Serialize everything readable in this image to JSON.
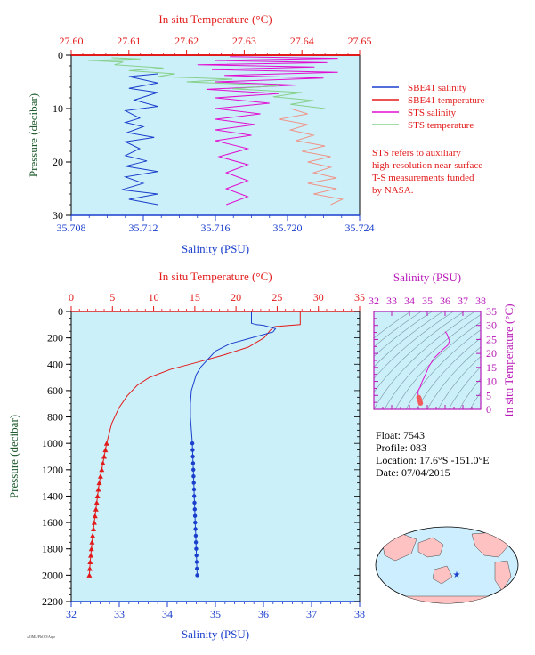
{
  "colors": {
    "background": "#ccf0fa",
    "blue": "#1a3fcc",
    "red": "#e21a1a",
    "magenta": "#e00fd0",
    "green": "#86d08a",
    "salmon": "#ef9488",
    "dark_green": "#1f5a2e",
    "purple": "#b818b8",
    "map_land": "#ffc2c2",
    "map_ocean": "#cceeff"
  },
  "footer_text": "AOML/PhOD/Argo",
  "chart_data": [
    {
      "type": "line",
      "id": "surface_profile",
      "top_axis_label": "In situ Temperature (°C)",
      "top_axis_ticks": [
        "27.60",
        "27.61",
        "27.62",
        "27.63",
        "27.64",
        "27.65"
      ],
      "top_axis_range": [
        27.6,
        27.65
      ],
      "bottom_axis_label": "Salinity (PSU)",
      "bottom_axis_ticks": [
        "35.708",
        "35.712",
        "35.716",
        "35.720",
        "35.724"
      ],
      "bottom_axis_range": [
        35.708,
        35.724
      ],
      "ylabel": "Pressure (decibar)",
      "y_ticks": [
        "0",
        "10",
        "20",
        "30"
      ],
      "y_range": [
        0,
        30
      ],
      "y_inverted": true,
      "legend": [
        {
          "name": "SBE41 salinity",
          "color": "#1a3fcc"
        },
        {
          "name": "SBE41 temperature",
          "color": "#e21a1a"
        },
        {
          "name": "STS salinity",
          "color": "#e00fd0"
        },
        {
          "name": "STS temperature",
          "color": "#86d08a"
        }
      ],
      "note": [
        "STS refers to auxiliary",
        "high-resolution near-surface",
        "T-S measurements funded",
        "by NASA."
      ],
      "series": [
        {
          "name": "SBE41 salinity",
          "axis": "bottom",
          "points": [
            [
              35.7128,
              3.5
            ],
            [
              35.7112,
              4.0
            ],
            [
              35.7128,
              5.2
            ],
            [
              35.7112,
              6.2
            ],
            [
              35.7128,
              7.0
            ],
            [
              35.7115,
              8.4
            ],
            [
              35.7128,
              9.6
            ],
            [
              35.711,
              10.4
            ],
            [
              35.7118,
              11.8
            ],
            [
              35.711,
              12.6
            ],
            [
              35.712,
              13.4
            ],
            [
              35.7111,
              14.5
            ],
            [
              35.7126,
              15.4
            ],
            [
              35.711,
              16.2
            ],
            [
              35.7118,
              17.5
            ],
            [
              35.711,
              18.8
            ],
            [
              35.7122,
              19.8
            ],
            [
              35.711,
              20.8
            ],
            [
              35.7128,
              21.8
            ],
            [
              35.711,
              22.8
            ],
            [
              35.712,
              24.0
            ],
            [
              35.7108,
              25.2
            ],
            [
              35.7128,
              26.0
            ],
            [
              35.7112,
              27.0
            ],
            [
              35.7128,
              28.0
            ]
          ]
        },
        {
          "name": "SBE41 temperature",
          "axis": "top",
          "points": [
            [
              27.6,
              0.0
            ],
            [
              27.65,
              0.0
            ]
          ]
        },
        {
          "name": "STS salinity",
          "axis": "bottom",
          "points": [
            [
              35.7168,
              0.3
            ],
            [
              35.7228,
              0.6
            ],
            [
              35.716,
              1.0
            ],
            [
              35.7222,
              1.4
            ],
            [
              35.715,
              1.8
            ],
            [
              35.7215,
              2.2
            ],
            [
              35.7158,
              2.7
            ],
            [
              35.7228,
              3.2
            ],
            [
              35.7165,
              3.8
            ],
            [
              35.722,
              4.3
            ],
            [
              35.716,
              5.0
            ],
            [
              35.7205,
              5.6
            ],
            [
              35.7155,
              6.4
            ],
            [
              35.7195,
              7.2
            ],
            [
              35.716,
              8.0
            ],
            [
              35.719,
              9.0
            ],
            [
              35.716,
              10.0
            ],
            [
              35.7185,
              11.0
            ],
            [
              35.716,
              12.0
            ],
            [
              35.7182,
              13.0
            ],
            [
              35.716,
              14.0
            ],
            [
              35.718,
              15.0
            ],
            [
              35.716,
              16.0
            ],
            [
              35.7178,
              17.5
            ],
            [
              35.7162,
              19.0
            ],
            [
              35.7178,
              20.5
            ],
            [
              35.7166,
              22.0
            ],
            [
              35.7178,
              23.5
            ],
            [
              35.7166,
              25.0
            ],
            [
              35.7178,
              26.5
            ],
            [
              35.7166,
              28.0
            ]
          ]
        },
        {
          "name": "STS temperature (upper)",
          "axis": "top",
          "points": [
            [
              27.607,
              0.5
            ],
            [
              27.612,
              0.7
            ],
            [
              27.603,
              1.0
            ],
            [
              27.609,
              1.3
            ],
            [
              27.6075,
              1.8
            ],
            [
              27.616,
              2.4
            ],
            [
              27.61,
              2.9
            ],
            [
              27.618,
              3.5
            ],
            [
              27.615,
              4.0
            ],
            [
              27.628,
              4.5
            ],
            [
              27.62,
              5.0
            ],
            [
              27.636,
              5.7
            ],
            [
              27.628,
              6.3
            ],
            [
              27.64,
              7.0
            ],
            [
              27.635,
              7.8
            ],
            [
              27.642,
              8.5
            ],
            [
              27.638,
              9.2
            ],
            [
              27.644,
              10.0
            ]
          ]
        },
        {
          "name": "STS temperature (deep)",
          "axis": "top",
          "points": [
            [
              27.638,
              10.0
            ],
            [
              27.641,
              11.0
            ],
            [
              27.636,
              12.0
            ],
            [
              27.641,
              13.0
            ],
            [
              27.638,
              14.0
            ],
            [
              27.642,
              15.0
            ],
            [
              27.639,
              16.0
            ],
            [
              27.644,
              17.0
            ],
            [
              27.64,
              18.0
            ],
            [
              27.645,
              19.0
            ],
            [
              27.641,
              20.0
            ],
            [
              27.645,
              21.0
            ],
            [
              27.642,
              22.0
            ],
            [
              27.646,
              23.0
            ],
            [
              27.641,
              24.0
            ],
            [
              27.646,
              25.0
            ],
            [
              27.642,
              26.0
            ],
            [
              27.647,
              27.0
            ],
            [
              27.645,
              28.0
            ]
          ]
        }
      ]
    },
    {
      "type": "line",
      "id": "deep_profile",
      "top_axis_label": "In situ Temperature (°C)",
      "top_axis_ticks": [
        "0",
        "5",
        "10",
        "15",
        "20",
        "25",
        "30",
        "35"
      ],
      "top_axis_range": [
        0,
        35
      ],
      "bottom_axis_label": "Salinity (PSU)",
      "bottom_axis_ticks": [
        "32",
        "33",
        "34",
        "35",
        "36",
        "37",
        "38"
      ],
      "bottom_axis_range": [
        32,
        38
      ],
      "ylabel": "Pressure (decibar)",
      "y_ticks": [
        "0",
        "200",
        "400",
        "600",
        "800",
        "1000",
        "1200",
        "1400",
        "1600",
        "1800",
        "2000",
        "2200"
      ],
      "y_range": [
        0,
        2200
      ],
      "y_inverted": true,
      "series": [
        {
          "name": "Temperature",
          "axis": "top",
          "points": [
            [
              27.8,
              0
            ],
            [
              27.8,
              100
            ],
            [
              24.7,
              115
            ],
            [
              24.2,
              140
            ],
            [
              23.4,
              200
            ],
            [
              21.5,
              270
            ],
            [
              18.5,
              330
            ],
            [
              15.0,
              390
            ],
            [
              12.0,
              440
            ],
            [
              9.5,
              500
            ],
            [
              8.0,
              560
            ],
            [
              6.8,
              640
            ],
            [
              5.8,
              730
            ],
            [
              4.9,
              850
            ],
            [
              4.3,
              1000
            ],
            [
              4.0,
              1100
            ],
            [
              3.7,
              1200
            ],
            [
              3.4,
              1300
            ],
            [
              3.2,
              1400
            ],
            [
              3.0,
              1500
            ],
            [
              2.8,
              1600
            ],
            [
              2.6,
              1700
            ],
            [
              2.45,
              1800
            ],
            [
              2.3,
              1900
            ],
            [
              2.2,
              2000
            ]
          ]
        },
        {
          "name": "Salinity",
          "axis": "bottom",
          "points": [
            [
              35.75,
              0
            ],
            [
              35.75,
              90
            ],
            [
              35.85,
              100
            ],
            [
              36.0,
              105
            ],
            [
              36.25,
              130
            ],
            [
              36.2,
              155
            ],
            [
              35.8,
              195
            ],
            [
              35.3,
              245
            ],
            [
              35.0,
              300
            ],
            [
              34.85,
              360
            ],
            [
              34.7,
              420
            ],
            [
              34.6,
              480
            ],
            [
              34.55,
              540
            ],
            [
              34.5,
              600
            ],
            [
              34.48,
              700
            ],
            [
              34.48,
              800
            ],
            [
              34.5,
              900
            ],
            [
              34.52,
              1000
            ],
            [
              34.53,
              1100
            ],
            [
              34.54,
              1200
            ],
            [
              34.55,
              1300
            ],
            [
              34.56,
              1400
            ],
            [
              34.57,
              1500
            ],
            [
              34.58,
              1600
            ],
            [
              34.59,
              1700
            ],
            [
              34.6,
              1800
            ],
            [
              34.61,
              1900
            ],
            [
              34.62,
              2000
            ]
          ]
        }
      ],
      "marker_pressures": [
        1000,
        1050,
        1100,
        1150,
        1200,
        1250,
        1300,
        1350,
        1400,
        1450,
        1500,
        1550,
        1600,
        1650,
        1700,
        1750,
        1800,
        1850,
        1900,
        1950,
        2000
      ]
    },
    {
      "type": "scatter",
      "id": "ts_diagram",
      "top_axis_label": "Salinity (PSU)",
      "top_axis_ticks": [
        "32",
        "33",
        "34",
        "35",
        "36",
        "37",
        "38"
      ],
      "x_range": [
        32,
        38
      ],
      "right_axis_label": "In situ Temperature (°C)",
      "right_axis_ticks": [
        "0",
        "5",
        "10",
        "15",
        "20",
        "25",
        "30",
        "35"
      ],
      "y_range": [
        0,
        35
      ],
      "points": [
        [
          36.0,
          27.8
        ],
        [
          36.1,
          27.0
        ],
        [
          36.25,
          24.5
        ],
        [
          36.15,
          23.0
        ],
        [
          35.8,
          21.0
        ],
        [
          35.4,
          18.5
        ],
        [
          35.1,
          15.5
        ],
        [
          34.9,
          12.5
        ],
        [
          34.7,
          9.8
        ],
        [
          34.6,
          8.0
        ],
        [
          34.5,
          6.8
        ],
        [
          34.48,
          5.8
        ],
        [
          34.5,
          4.9
        ],
        [
          34.52,
          4.3
        ],
        [
          34.55,
          3.8
        ],
        [
          34.58,
          3.2
        ],
        [
          34.6,
          2.6
        ],
        [
          34.62,
          2.2
        ]
      ]
    }
  ],
  "float_info": {
    "float": "Float:  7543",
    "profile": "Profile:  083",
    "location": "Location:  17.6°S  -151.0°E",
    "date": "Date:  07/04/2015"
  }
}
